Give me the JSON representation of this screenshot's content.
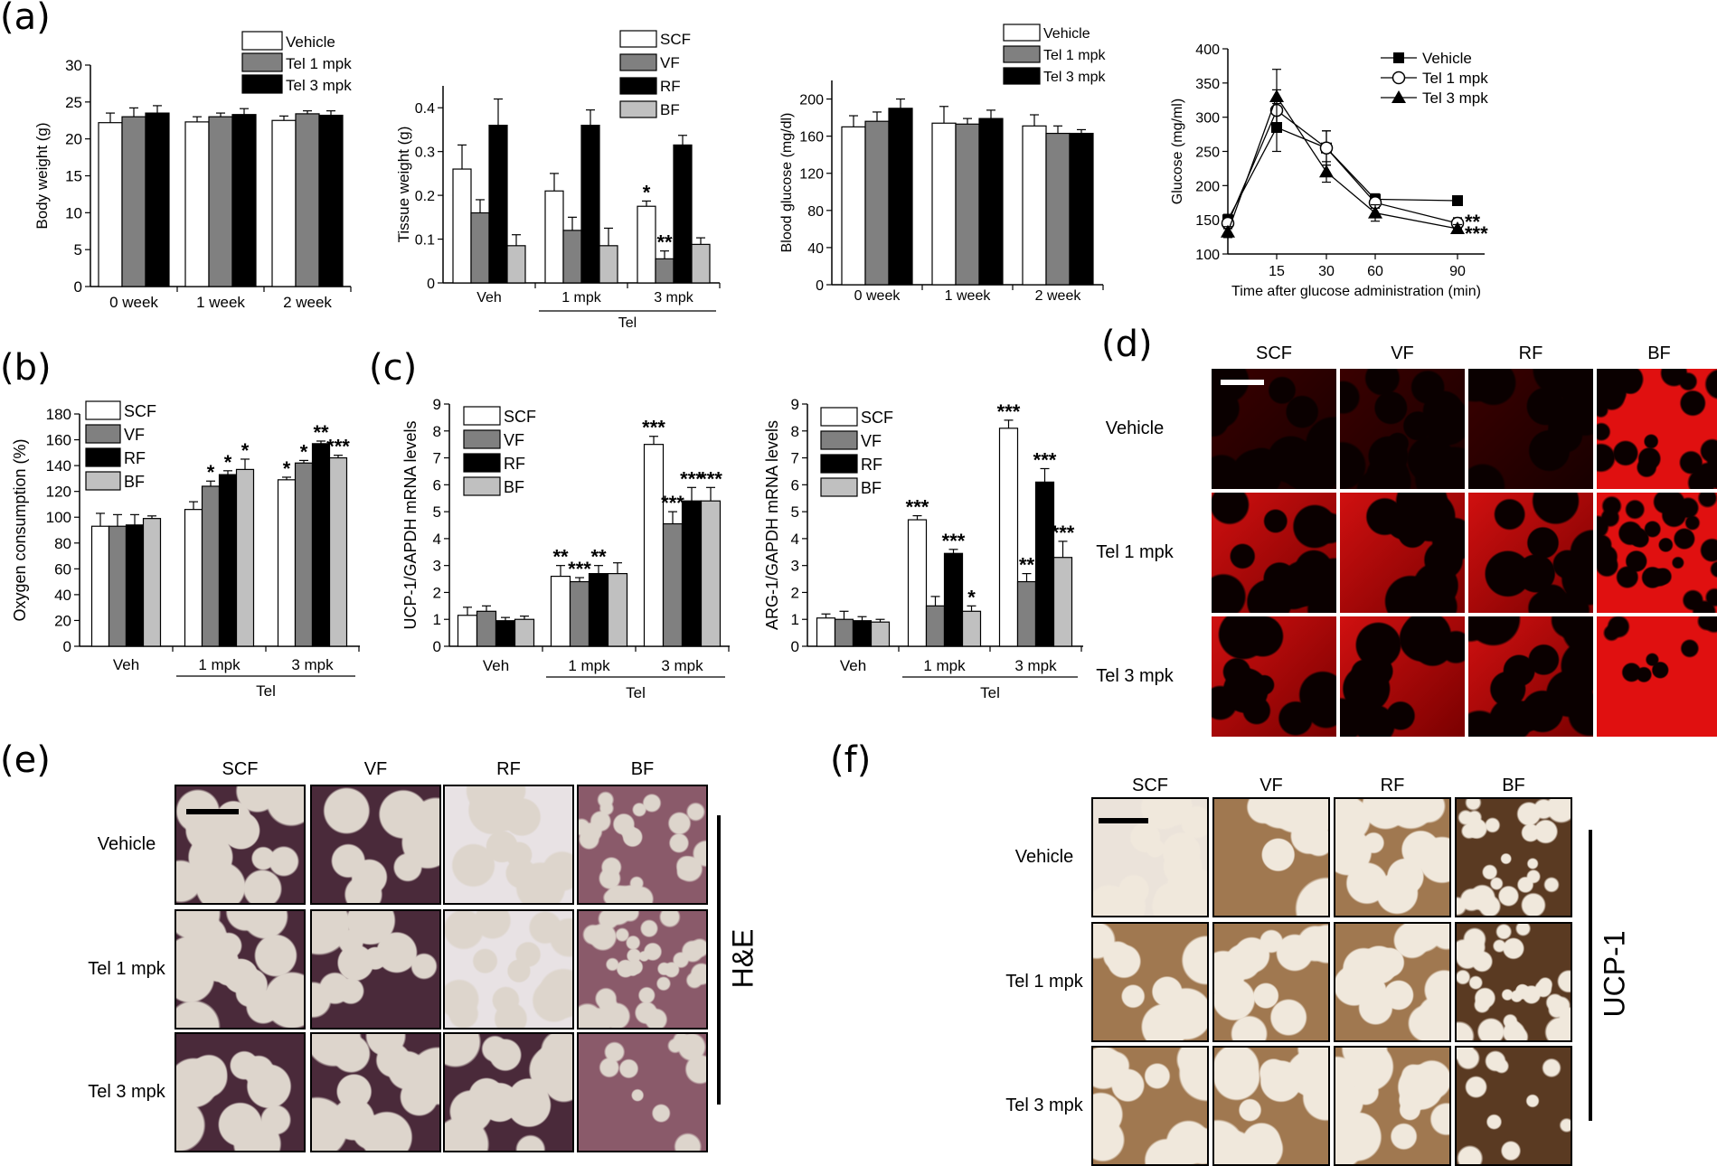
{
  "panels": {
    "a": {
      "letter": "(a)"
    },
    "b": {
      "letter": "(b)"
    },
    "c": {
      "letter": "(c)"
    },
    "d": {
      "letter": "(d)"
    },
    "e": {
      "letter": "(e)"
    },
    "f": {
      "letter": "(f)"
    }
  },
  "chart_data": [
    {
      "id": "body-weight",
      "type": "bar",
      "ylabel": "Body weight (g)",
      "ylim": [
        0,
        30
      ],
      "yticks": [
        0,
        5,
        10,
        15,
        20,
        25,
        30
      ],
      "categories": [
        "0 week",
        "1 week",
        "2 week"
      ],
      "legend": "top-right",
      "series": [
        {
          "name": "Vehicle",
          "color": "#ffffff",
          "values": [
            22.2,
            22.3,
            22.5
          ],
          "errors": [
            1.3,
            0.7,
            0.6
          ],
          "stars": [
            "",
            "",
            ""
          ]
        },
        {
          "name": "Tel 1 mpk",
          "color": "#808080",
          "values": [
            23.0,
            23.0,
            23.4
          ],
          "errors": [
            1.2,
            0.5,
            0.4
          ],
          "stars": [
            "",
            "",
            ""
          ]
        },
        {
          "name": "Tel 3 mpk",
          "color": "#000000",
          "values": [
            23.5,
            23.3,
            23.2
          ],
          "errors": [
            1.0,
            0.8,
            0.6
          ],
          "stars": [
            "",
            "",
            ""
          ]
        }
      ]
    },
    {
      "id": "tissue-weight",
      "type": "bar",
      "ylabel": "Tissue weight (g)",
      "ylim": [
        0,
        0.45
      ],
      "yticks": [
        0.0,
        0.1,
        0.2,
        0.3,
        0.4
      ],
      "categories": [
        "Veh",
        "1 mpk",
        "3 mpk"
      ],
      "group_label": {
        "text": "Tel",
        "from": 1,
        "to": 2
      },
      "legend": "top-right",
      "series": [
        {
          "name": "SCF",
          "color": "#ffffff",
          "values": [
            0.26,
            0.21,
            0.175
          ],
          "errors": [
            0.055,
            0.04,
            0.012
          ],
          "stars": [
            "",
            "",
            "*"
          ]
        },
        {
          "name": "VF",
          "color": "#808080",
          "values": [
            0.16,
            0.12,
            0.055
          ],
          "errors": [
            0.03,
            0.03,
            0.018
          ],
          "stars": [
            "",
            "",
            "**"
          ]
        },
        {
          "name": "RF",
          "color": "#000000",
          "values": [
            0.36,
            0.36,
            0.315
          ],
          "errors": [
            0.06,
            0.035,
            0.022
          ],
          "stars": [
            "",
            "",
            ""
          ]
        },
        {
          "name": "BF",
          "color": "#c0c0c0",
          "values": [
            0.085,
            0.085,
            0.088
          ],
          "errors": [
            0.025,
            0.04,
            0.015
          ],
          "stars": [
            "",
            "",
            ""
          ]
        }
      ]
    },
    {
      "id": "blood-glucose",
      "type": "bar",
      "ylabel": "Blood glucose (mg/dl)",
      "ylim": [
        0,
        220
      ],
      "yticks": [
        0,
        40,
        80,
        120,
        160,
        200
      ],
      "categories": [
        "0 week",
        "1 week",
        "2 week"
      ],
      "legend": "top-right",
      "series": [
        {
          "name": "Vehicle",
          "color": "#ffffff",
          "values": [
            170,
            174,
            171
          ],
          "errors": [
            12,
            18,
            12
          ],
          "stars": [
            "",
            "",
            ""
          ]
        },
        {
          "name": "Tel 1 mpk",
          "color": "#808080",
          "values": [
            176,
            173,
            163
          ],
          "errors": [
            10,
            6,
            8
          ],
          "stars": [
            "",
            "",
            ""
          ]
        },
        {
          "name": "Tel 3 mpk",
          "color": "#000000",
          "values": [
            190,
            179,
            163
          ],
          "errors": [
            10,
            9,
            4
          ],
          "stars": [
            "",
            "",
            ""
          ]
        }
      ]
    },
    {
      "id": "glucose-tolerance",
      "type": "line",
      "xlabel": "Time after glucose administration (min)",
      "ylabel": "Glucose (mg/ml)",
      "ylim": [
        100,
        400
      ],
      "yticks": [
        100,
        150,
        200,
        250,
        300,
        350,
        400
      ],
      "xlim": [
        0,
        105
      ],
      "x": [
        0,
        15,
        30,
        60,
        90
      ],
      "xticks": [
        15,
        30,
        60,
        90
      ],
      "legend": "top-right",
      "series": [
        {
          "name": "Vehicle",
          "marker": "square",
          "values": [
            150,
            285,
            255,
            180,
            178
          ],
          "errors": [
            8,
            35,
            25,
            8,
            6
          ]
        },
        {
          "name": "Tel 1 mpk",
          "marker": "circle",
          "values": [
            145,
            310,
            255,
            175,
            145
          ],
          "errors": [
            8,
            30,
            25,
            8,
            8
          ]
        },
        {
          "name": "Tel 3 mpk",
          "marker": "triangle",
          "values": [
            132,
            330,
            220,
            160,
            137
          ],
          "errors": [
            8,
            40,
            15,
            12,
            6
          ]
        }
      ],
      "annotations": [
        {
          "x": 90,
          "y": 145,
          "text": "**"
        },
        {
          "x": 90,
          "y": 128,
          "text": "***"
        }
      ]
    },
    {
      "id": "oxygen-consumption",
      "type": "bar",
      "ylabel": "Oxygen consumption (%)",
      "ylim": [
        0,
        180
      ],
      "yticks": [
        0,
        20,
        40,
        60,
        80,
        100,
        120,
        140,
        160,
        180
      ],
      "categories": [
        "Veh",
        "1 mpk",
        "3 mpk"
      ],
      "group_label": {
        "text": "Tel",
        "from": 1,
        "to": 2
      },
      "legend": "top-left",
      "series": [
        {
          "name": "SCF",
          "color": "#ffffff",
          "values": [
            93,
            106,
            129
          ],
          "errors": [
            10,
            6,
            2
          ],
          "stars": [
            "",
            "",
            "*"
          ]
        },
        {
          "name": "VF",
          "color": "#808080",
          "values": [
            93,
            124,
            142
          ],
          "errors": [
            9,
            4,
            2
          ],
          "stars": [
            "",
            "*",
            "*"
          ]
        },
        {
          "name": "RF",
          "color": "#000000",
          "values": [
            94,
            133,
            157
          ],
          "errors": [
            8,
            3,
            2
          ],
          "stars": [
            "",
            "*",
            "**"
          ]
        },
        {
          "name": "BF",
          "color": "#c0c0c0",
          "values": [
            99,
            137,
            146
          ],
          "errors": [
            2,
            8,
            2
          ],
          "stars": [
            "",
            "*",
            "***"
          ]
        }
      ]
    },
    {
      "id": "ucp1-mrna",
      "type": "bar",
      "ylabel": "UCP-1/GAPDH mRNA levels",
      "ylim": [
        0,
        9
      ],
      "yticks": [
        0,
        1,
        2,
        3,
        4,
        5,
        6,
        7,
        8,
        9
      ],
      "categories": [
        "Veh",
        "1 mpk",
        "3 mpk"
      ],
      "group_label": {
        "text": "Tel",
        "from": 1,
        "to": 2
      },
      "legend": "top-left",
      "series": [
        {
          "name": "SCF",
          "color": "#ffffff",
          "values": [
            1.15,
            2.6,
            7.5
          ],
          "errors": [
            0.3,
            0.4,
            0.3
          ],
          "stars": [
            "",
            "**",
            "***"
          ]
        },
        {
          "name": "VF",
          "color": "#808080",
          "values": [
            1.3,
            2.4,
            4.55
          ],
          "errors": [
            0.2,
            0.15,
            0.45
          ],
          "stars": [
            "",
            "***",
            "***"
          ]
        },
        {
          "name": "RF",
          "color": "#000000",
          "values": [
            0.95,
            2.7,
            5.4
          ],
          "errors": [
            0.12,
            0.3,
            0.5
          ],
          "stars": [
            "",
            "**",
            "***"
          ]
        },
        {
          "name": "BF",
          "color": "#c0c0c0",
          "values": [
            1.0,
            2.7,
            5.4
          ],
          "errors": [
            0.12,
            0.4,
            0.5
          ],
          "stars": [
            "",
            "",
            "***"
          ]
        }
      ]
    },
    {
      "id": "arg1-mrna",
      "type": "bar",
      "ylabel": "ARG-1/GAPDH mRNA levels",
      "ylim": [
        0,
        9
      ],
      "yticks": [
        0,
        1,
        2,
        3,
        4,
        5,
        6,
        7,
        8,
        9
      ],
      "categories": [
        "Veh",
        "1 mpk",
        "3 mpk"
      ],
      "group_label": {
        "text": "Tel",
        "from": 1,
        "to": 2
      },
      "legend": "top-left",
      "series": [
        {
          "name": "SCF",
          "color": "#ffffff",
          "values": [
            1.05,
            4.7,
            8.1
          ],
          "errors": [
            0.15,
            0.15,
            0.3
          ],
          "stars": [
            "",
            "***",
            "***"
          ]
        },
        {
          "name": "VF",
          "color": "#808080",
          "values": [
            1.0,
            1.5,
            2.4
          ],
          "errors": [
            0.3,
            0.35,
            0.3
          ],
          "stars": [
            "",
            "",
            "**"
          ]
        },
        {
          "name": "RF",
          "color": "#000000",
          "values": [
            0.95,
            3.45,
            6.1
          ],
          "errors": [
            0.15,
            0.15,
            0.5
          ],
          "stars": [
            "",
            "***",
            "***"
          ]
        },
        {
          "name": "BF",
          "color": "#c0c0c0",
          "values": [
            0.9,
            1.3,
            3.3
          ],
          "errors": [
            0.1,
            0.2,
            0.6
          ],
          "stars": [
            "",
            "*",
            "***"
          ]
        }
      ]
    }
  ],
  "micrographs": {
    "d": {
      "columns": [
        "SCF",
        "VF",
        "RF",
        "BF"
      ],
      "rows": [
        "Vehicle",
        "Tel 1 mpk",
        "Tel 3 mpk"
      ]
    },
    "e": {
      "columns": [
        "SCF",
        "VF",
        "RF",
        "BF"
      ],
      "rows": [
        "Vehicle",
        "Tel 1 mpk",
        "Tel 3 mpk"
      ],
      "side_label": "H&E"
    },
    "f": {
      "columns": [
        "SCF",
        "VF",
        "RF",
        "BF"
      ],
      "rows": [
        "Vehicle",
        "Tel 1 mpk",
        "Tel 3 mpk"
      ],
      "side_label": "UCP-1"
    }
  }
}
